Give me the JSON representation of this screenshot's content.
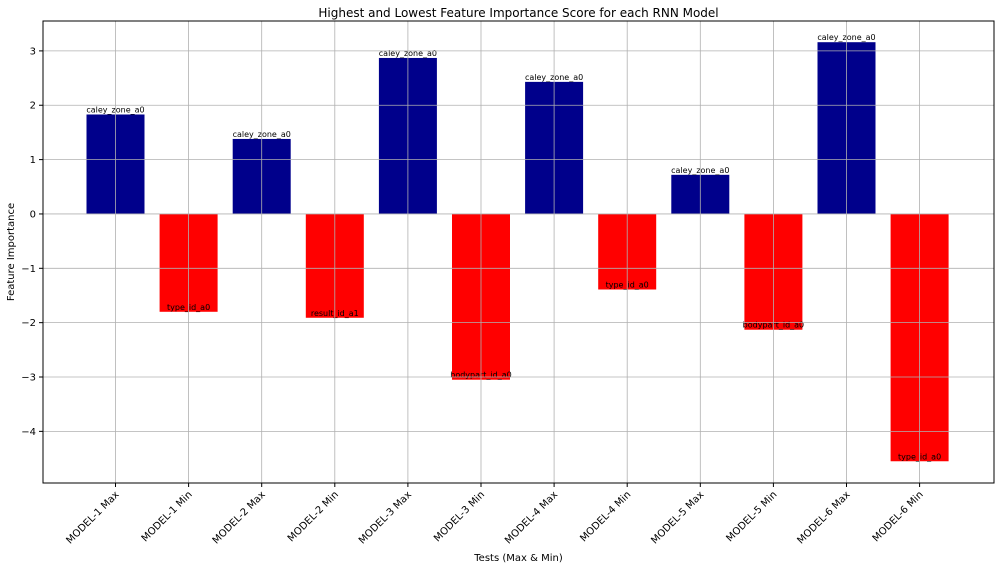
{
  "chart_data": {
    "type": "bar",
    "title": "Highest and Lowest Feature Importance Score for each RNN Model",
    "xlabel": "Tests (Max & Min)",
    "ylabel": "Feature Importance",
    "ylim": [
      -4.95,
      3.55
    ],
    "yticks": [
      -4,
      -3,
      -2,
      -1,
      0,
      1,
      2,
      3
    ],
    "ytick_labels": [
      "−4",
      "−3",
      "−2",
      "−1",
      "0",
      "1",
      "2",
      "3"
    ],
    "grid": true,
    "categories": [
      "MODEL-1 Max",
      "MODEL-1 Min",
      "MODEL-2 Max",
      "MODEL-2 Min",
      "MODEL-3 Max",
      "MODEL-3 Min",
      "MODEL-4 Max",
      "MODEL-4 Min",
      "MODEL-5 Max",
      "MODEL-5 Min",
      "MODEL-6 Max",
      "MODEL-6 Min"
    ],
    "values": [
      1.83,
      -1.8,
      1.38,
      -1.91,
      2.87,
      -3.05,
      2.43,
      -1.39,
      0.72,
      -2.13,
      3.16,
      -4.55
    ],
    "bar_labels": [
      "caley_zone_a0",
      "type_id_a0",
      "caley_zone_a0",
      "result_id_a1",
      "caley_zone_a0",
      "bodypart_id_a0",
      "caley_zone_a0",
      "type_id_a0",
      "caley_zone_a0",
      "bodypart_id_a0",
      "caley_zone_a0",
      "type_id_a0"
    ],
    "colors": {
      "max": "#00008b",
      "min": "#ff0000",
      "grid": "#b0b0b0",
      "axis": "#000000"
    }
  }
}
